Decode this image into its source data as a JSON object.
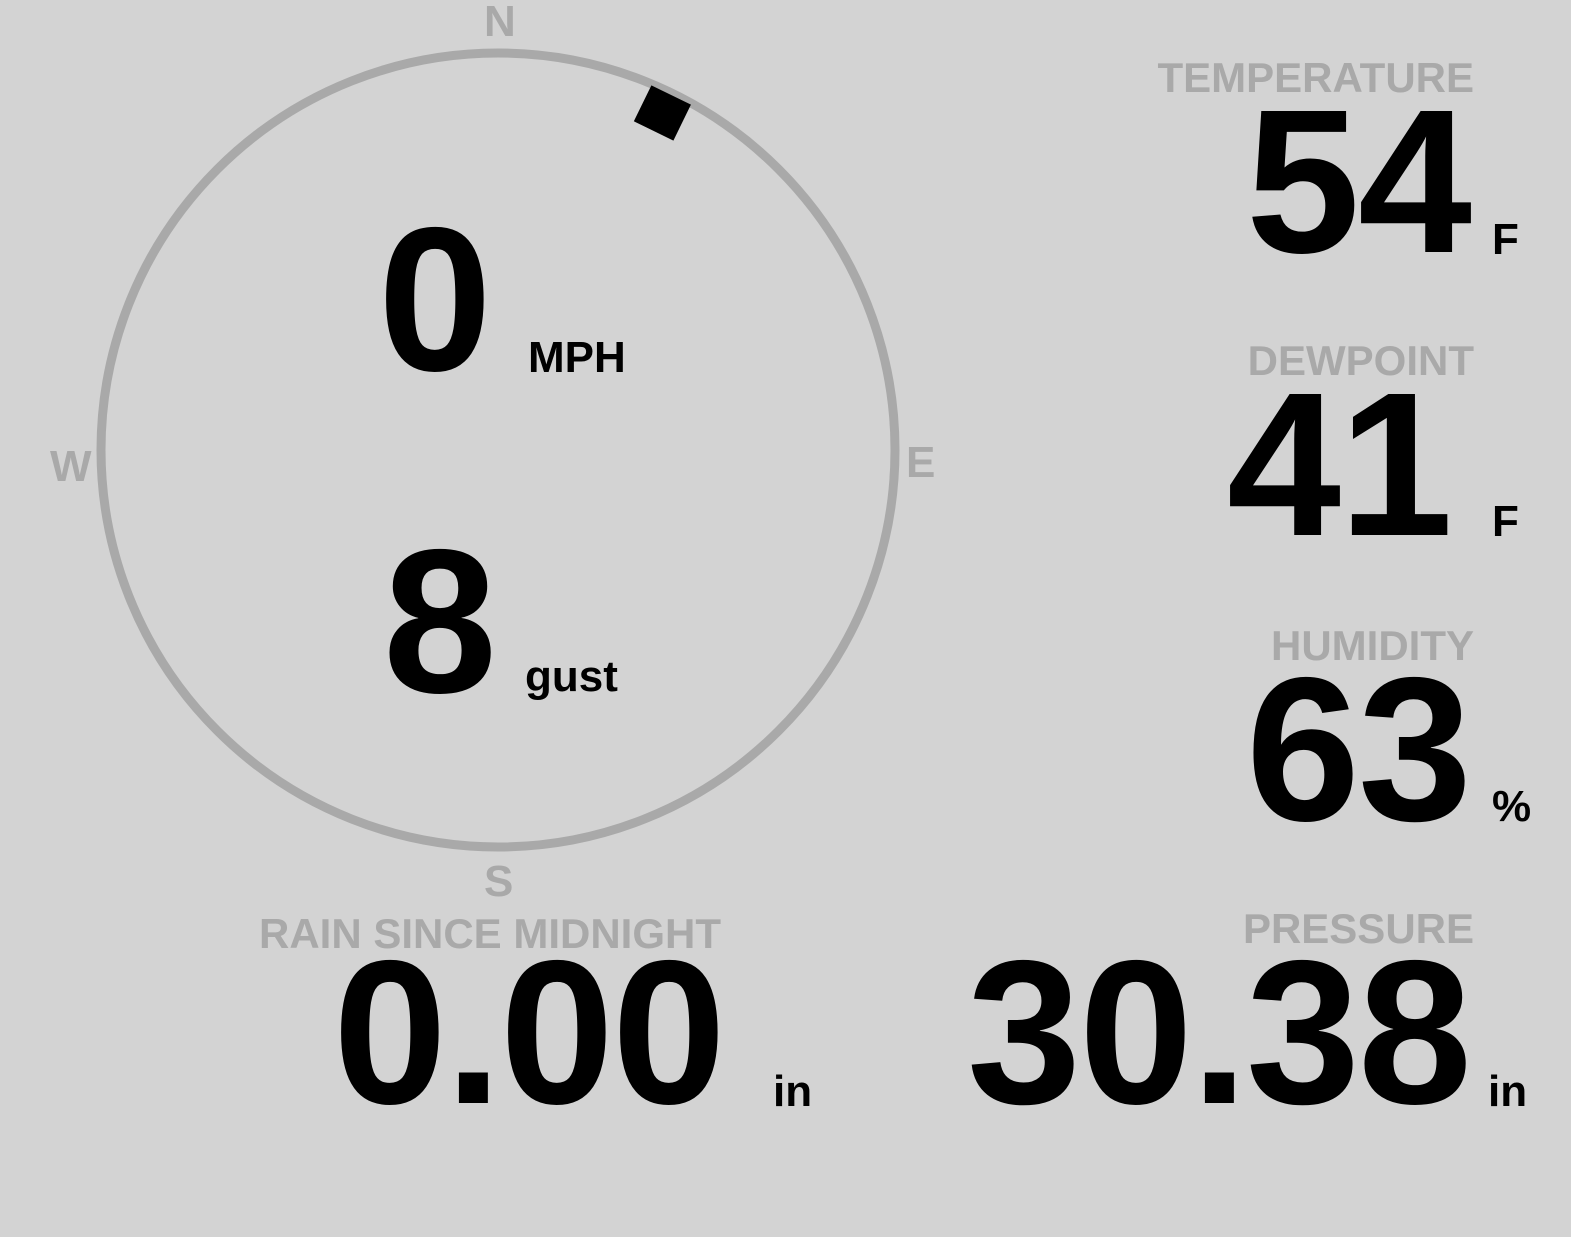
{
  "wind": {
    "speed": "0",
    "speed_unit": "MPH",
    "gust": "8",
    "gust_unit": "gust",
    "direction_degrees": 26,
    "compass": {
      "n": "N",
      "s": "S",
      "e": "E",
      "w": "W"
    }
  },
  "temperature": {
    "label": "TEMPERATURE",
    "value": "54",
    "unit": "F"
  },
  "dewpoint": {
    "label": "DEWPOINT",
    "value": "41",
    "unit": "F"
  },
  "humidity": {
    "label": "HUMIDITY",
    "value": "63",
    "unit": "%"
  },
  "rain": {
    "label": "RAIN SINCE MIDNIGHT",
    "value": "0.00",
    "unit": "in"
  },
  "pressure": {
    "label": "PRESSURE",
    "value": "30.38",
    "unit": "in"
  },
  "colors": {
    "background": "#d3d3d3",
    "muted": "#a9a9a9",
    "text": "#000000"
  }
}
